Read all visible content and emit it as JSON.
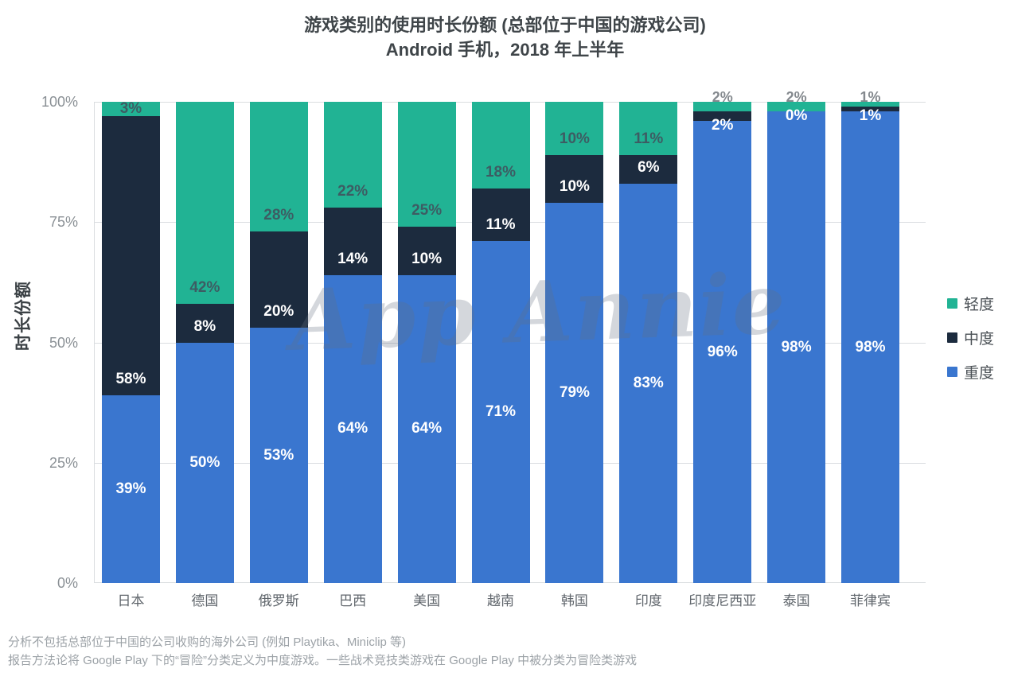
{
  "title": {
    "line1": "游戏类别的使用时长份额 (总部位于中国的游戏公司)",
    "line2": "Android 手机，2018 年上半年"
  },
  "y_axis": {
    "title": "时长份额",
    "ticks": [
      "0%",
      "25%",
      "50%",
      "75%",
      "100%"
    ],
    "tick_values": [
      0,
      25,
      50,
      75,
      100
    ]
  },
  "watermark": {
    "text": "App Annie"
  },
  "legend": {
    "position": "right",
    "items": [
      {
        "label": "轻度",
        "color": "#21B394"
      },
      {
        "label": "中度",
        "color": "#1C2B3E"
      },
      {
        "label": "重度",
        "color": "#3A76CF"
      }
    ]
  },
  "footnotes": [
    "分析不包括总部位于中国的公司收购的海外公司 (例如 Playtika、Miniclip 等)",
    "报告方法论将 Google Play 下的“冒险”分类定义为中度游戏。一些战术竞技类游戏在 Google Play 中被分类为冒险类游戏"
  ],
  "chart_data": {
    "type": "bar",
    "stacked": true,
    "percent_of_total": true,
    "title": "游戏类别的使用时长份额 (总部位于中国的游戏公司) — Android 手机，2018 年上半年",
    "xlabel": "",
    "ylabel": "时长份额",
    "ylim": [
      0,
      100
    ],
    "grid": true,
    "legend_position": "right",
    "categories": [
      "日本",
      "德国",
      "俄罗斯",
      "巴西",
      "美国",
      "越南",
      "韩国",
      "印度",
      "印度尼西亚",
      "泰国",
      "菲律宾"
    ],
    "series": [
      {
        "name": "重度",
        "color": "#3A76CF",
        "values": [
          39,
          50,
          53,
          64,
          64,
          71,
          79,
          83,
          96,
          98,
          98
        ]
      },
      {
        "name": "中度",
        "color": "#1C2B3E",
        "values": [
          58,
          8,
          20,
          14,
          10,
          11,
          10,
          6,
          2,
          0,
          1
        ]
      },
      {
        "name": "轻度",
        "color": "#21B394",
        "values": [
          3,
          42,
          28,
          22,
          25,
          18,
          10,
          11,
          2,
          2,
          1
        ]
      }
    ]
  }
}
